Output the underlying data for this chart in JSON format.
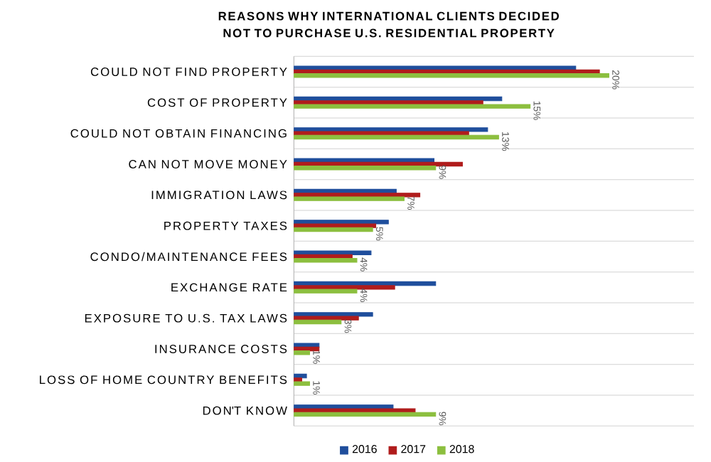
{
  "chart_data": {
    "type": "bar",
    "orientation": "horizontal",
    "title": "REASONS WHY INTERNATIONAL CLIENTS DECIDED NOT TO PURCHASE U.S. RESIDENTIAL PROPERTY",
    "categories": [
      "COULD NOT FIND PROPERTY",
      "COST OF PROPERTY",
      "COULD NOT OBTAIN FINANCING",
      "CAN NOT MOVE MONEY",
      "IMMIGRATION LAWS",
      "PROPERTY TAXES",
      "CONDO/MAINTENANCE FEES",
      "EXCHANGE RATE",
      "EXPOSURE TO U.S. TAX LAWS",
      "INSURANCE COSTS",
      "LOSS OF HOME COUNTRY BENEFITS",
      "DON'T KNOW"
    ],
    "series": [
      {
        "name": "2016",
        "color": "#1f4e9c",
        "values": [
          17.9,
          13.2,
          12.3,
          8.9,
          6.5,
          6.0,
          4.9,
          9.0,
          5.0,
          1.6,
          0.8,
          6.3
        ]
      },
      {
        "name": "2017",
        "color": "#b01c1c",
        "values": [
          19.4,
          12.0,
          11.1,
          10.7,
          8.0,
          5.2,
          3.7,
          6.4,
          4.1,
          1.6,
          0.5,
          7.7
        ]
      },
      {
        "name": "2018",
        "color": "#8cbf3f",
        "values": [
          20,
          15,
          13,
          9,
          7,
          5,
          4,
          4,
          3,
          1,
          1,
          9
        ],
        "value_labels": [
          "20%",
          "15%",
          "13%",
          "9%",
          "7%",
          "5%",
          "4%",
          "4%",
          "3%",
          "1%",
          "1%",
          "9%"
        ]
      }
    ],
    "xlim": [
      0,
      25.4
    ],
    "tick_labels": "y",
    "grid": "y",
    "legend": "bottom"
  }
}
